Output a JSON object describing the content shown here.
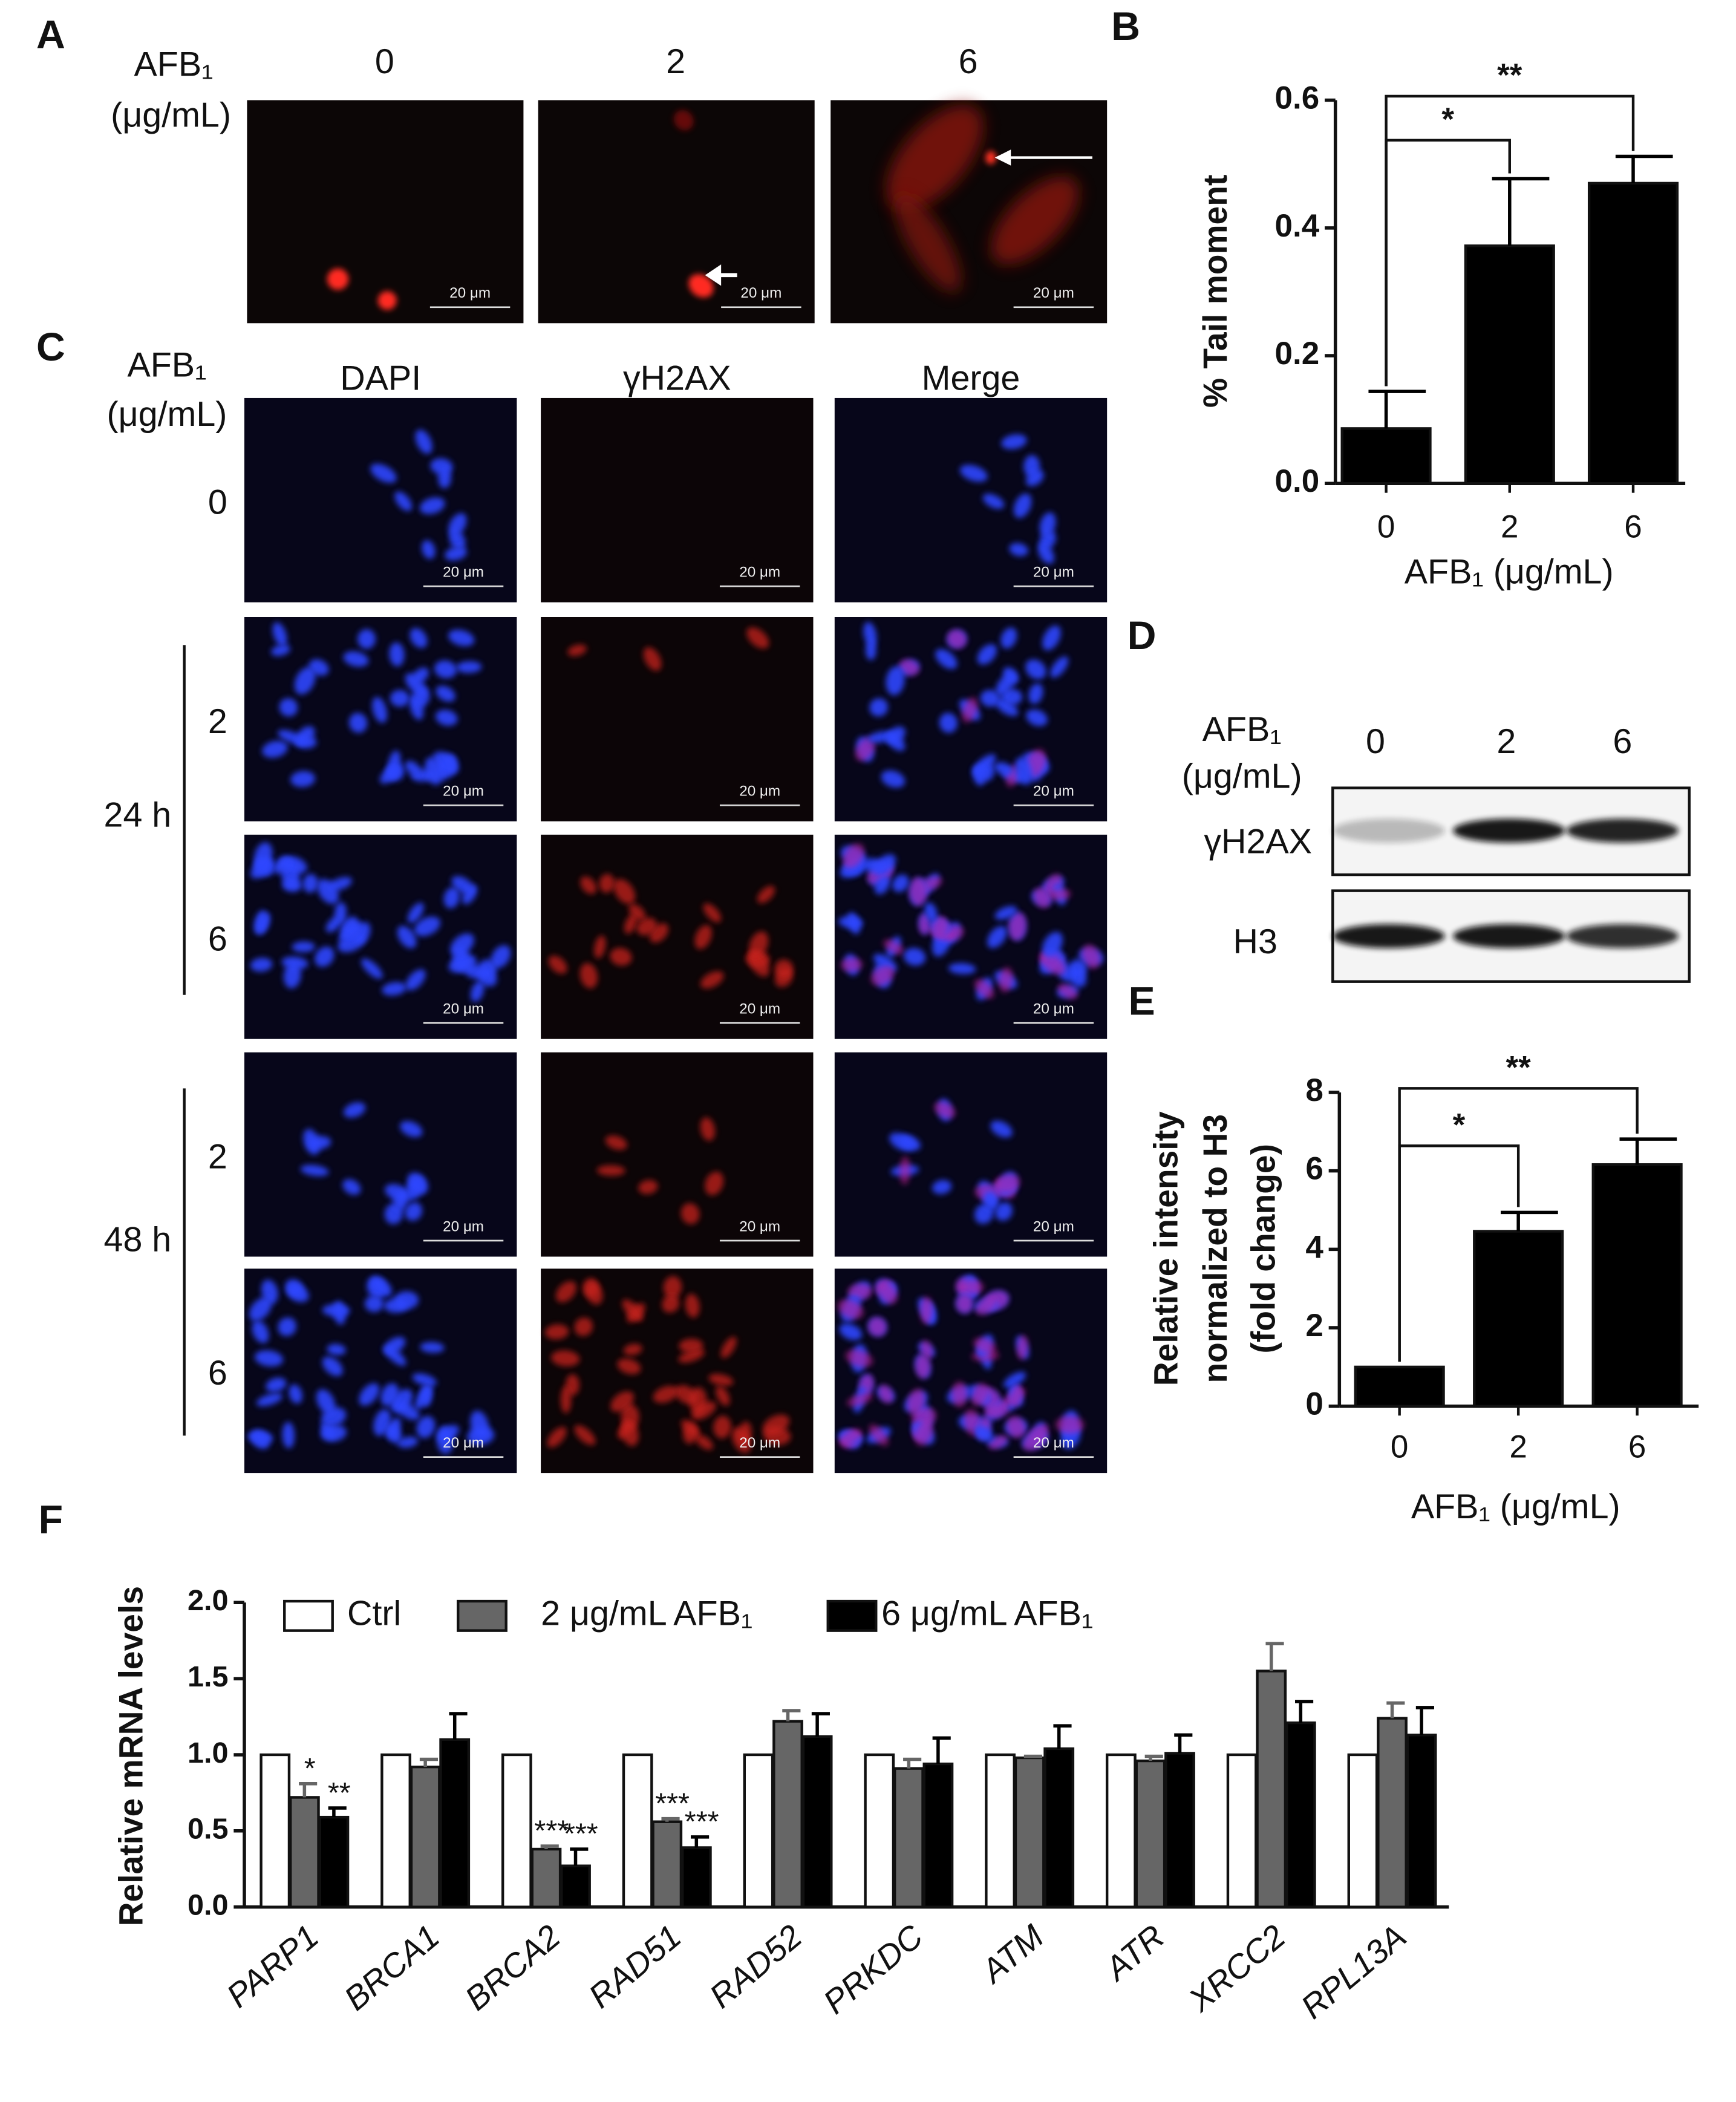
{
  "panel_labels": [
    "A",
    "B",
    "C",
    "D",
    "E",
    "F"
  ],
  "panel_a": {
    "treatment_label": "AFB₁",
    "unit_label": "(μg/mL)",
    "doses": [
      "0",
      "2",
      "6"
    ],
    "scale_bar": "20 μm"
  },
  "panel_c": {
    "treatment_label": "AFB₁",
    "unit_label": "(μg/mL)",
    "channels": [
      "DAPI",
      "γH2AX",
      "Merge"
    ],
    "rows": [
      "0",
      "2",
      "6",
      "2",
      "6"
    ],
    "times": [
      "24 h",
      "48 h"
    ],
    "scale_bar": "20 μm"
  },
  "panel_d": {
    "treatment_label": "AFB₁",
    "unit_label": "(μg/mL)",
    "doses": [
      "0",
      "2",
      "6"
    ],
    "bands": [
      "γH2AX",
      "H3"
    ]
  },
  "chart_data": [
    {
      "type": "bar",
      "ylabel": "% Tail moment",
      "xlabel": "AFB₁ (μg/mL)",
      "categories": [
        "0",
        "2",
        "6"
      ],
      "values": [
        0.086,
        0.372,
        0.47
      ],
      "errors": [
        0.058,
        0.105,
        0.042
      ],
      "color": "#000000",
      "ylim": [
        0,
        0.6
      ],
      "yticks": [
        {
          "value": 0,
          "label": "0.0"
        },
        0.2,
        0.4,
        0.6
      ],
      "annotations": [
        "*",
        "**"
      ]
    },
    {
      "type": "bar",
      "ylabel": [
        "Relative intensity",
        "normalized to H3",
        "(fold change)"
      ],
      "xlabel": "AFB₁ (μg/mL)",
      "categories": [
        "0",
        "2",
        "6"
      ],
      "values": [
        1.0,
        4.46,
        6.16
      ],
      "errors": [
        null,
        0.48,
        0.65
      ],
      "color": "#000000",
      "ylim": [
        0,
        8
      ],
      "yticks": [
        0,
        2,
        4,
        6,
        8
      ],
      "annotations": [
        "*",
        "**"
      ]
    },
    {
      "type": "bar",
      "ylabel": "Relative mRNA levels",
      "categories": [
        "PARP1",
        "BRCA1",
        "BRCA2",
        "RAD51",
        "RAD52",
        "PRKDC",
        "ATM",
        "ATR",
        "XRCC2",
        "RPL13A"
      ],
      "ylim": [
        0,
        2
      ],
      "yticks": [
        {
          "value": 0,
          "label": "0.0"
        },
        0.5,
        {
          "value": 1,
          "label": "1.0"
        },
        1.5,
        {
          "value": 2,
          "label": "2.0"
        }
      ],
      "legend": "top",
      "series": [
        {
          "name": "Ctrl",
          "color": "#ffffff",
          "values": [
            1,
            1,
            1,
            1,
            1,
            1,
            1,
            1,
            1,
            1
          ]
        },
        {
          "name": "2 μg/mL AFB₁",
          "color": "#666666",
          "values": [
            0.72,
            0.92,
            0.38,
            0.56,
            1.22,
            0.91,
            0.98,
            0.96,
            1.55,
            1.24
          ],
          "errors": [
            0.09,
            0.05,
            0.02,
            0.02,
            0.07,
            0.06,
            0.01,
            0.03,
            0.18,
            0.1
          ],
          "significance": [
            "*",
            null,
            "***",
            "***",
            null,
            null,
            null,
            null,
            null,
            null
          ]
        },
        {
          "name": "6 μg/mL AFB₁",
          "color": "#000000",
          "values": [
            0.59,
            1.1,
            0.27,
            0.39,
            1.12,
            0.94,
            1.04,
            1.01,
            1.21,
            1.13
          ],
          "errors": [
            0.06,
            0.17,
            0.11,
            0.07,
            0.15,
            0.17,
            0.15,
            0.12,
            0.14,
            0.18
          ],
          "significance": [
            "**",
            null,
            "***",
            "***",
            null,
            null,
            null,
            null,
            null,
            null
          ]
        }
      ]
    }
  ]
}
